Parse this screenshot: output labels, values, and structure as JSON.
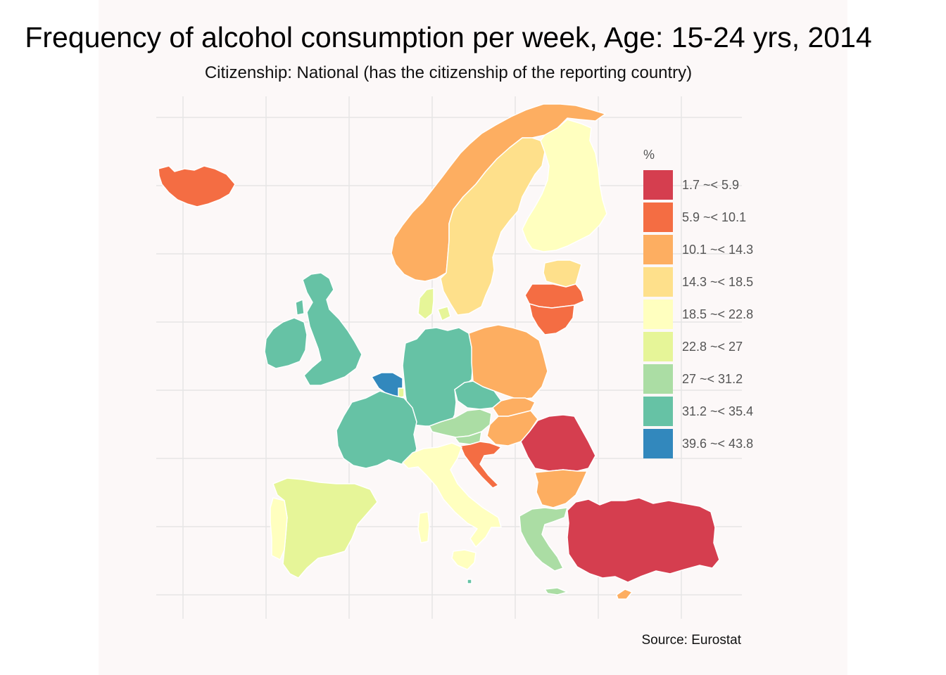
{
  "title": "Frequency of alcohol consumption per week, Age: 15-24 yrs, 2014",
  "subtitle": "Citizenship: National (has the citizenship of the reporting country)",
  "caption": "Source: Eurostat",
  "legend": {
    "title": "%",
    "items": [
      {
        "label": "1.7 ~< 5.9",
        "color": "#d53e4f"
      },
      {
        "label": "5.9 ~< 10.1",
        "color": "#f46d43"
      },
      {
        "label": "10.1 ~< 14.3",
        "color": "#fdae61"
      },
      {
        "label": "14.3 ~< 18.5",
        "color": "#fee08b"
      },
      {
        "label": "18.5 ~< 22.8",
        "color": "#ffffbf"
      },
      {
        "label": "22.8 ~< 27",
        "color": "#e6f598"
      },
      {
        "label": "27 ~< 31.2",
        "color": "#abdda4"
      },
      {
        "label": "31.2 ~< 35.4",
        "color": "#66c2a5"
      },
      {
        "label": "39.6 ~< 43.8",
        "color": "#3288bd"
      }
    ]
  },
  "regions": [
    {
      "id": "iceland",
      "class": 1
    },
    {
      "id": "norway",
      "class": 2
    },
    {
      "id": "sweden",
      "class": 3
    },
    {
      "id": "finland",
      "class": 4
    },
    {
      "id": "estonia",
      "class": 3
    },
    {
      "id": "latvia",
      "class": 1
    },
    {
      "id": "lithuania",
      "class": 1
    },
    {
      "id": "denmark",
      "class": 5
    },
    {
      "id": "ireland",
      "class": 7
    },
    {
      "id": "united-kingdom",
      "class": 7
    },
    {
      "id": "belgium",
      "class": 8
    },
    {
      "id": "luxembourg",
      "class": 5
    },
    {
      "id": "germany",
      "class": 7
    },
    {
      "id": "france",
      "class": 7
    },
    {
      "id": "poland",
      "class": 2
    },
    {
      "id": "czechia",
      "class": 7
    },
    {
      "id": "slovakia",
      "class": 2
    },
    {
      "id": "austria",
      "class": 6
    },
    {
      "id": "hungary",
      "class": 2
    },
    {
      "id": "slovenia",
      "class": 6
    },
    {
      "id": "croatia",
      "class": 1
    },
    {
      "id": "romania",
      "class": 0
    },
    {
      "id": "bulgaria",
      "class": 2
    },
    {
      "id": "italy",
      "class": 4
    },
    {
      "id": "sardinia",
      "class": 4
    },
    {
      "id": "sicily",
      "class": 4
    },
    {
      "id": "malta",
      "class": 7
    },
    {
      "id": "spain",
      "class": 5
    },
    {
      "id": "portugal",
      "class": 4
    },
    {
      "id": "greece",
      "class": 6
    },
    {
      "id": "crete",
      "class": 6
    },
    {
      "id": "cyprus",
      "class": 2
    },
    {
      "id": "turkey",
      "class": 0
    }
  ]
}
